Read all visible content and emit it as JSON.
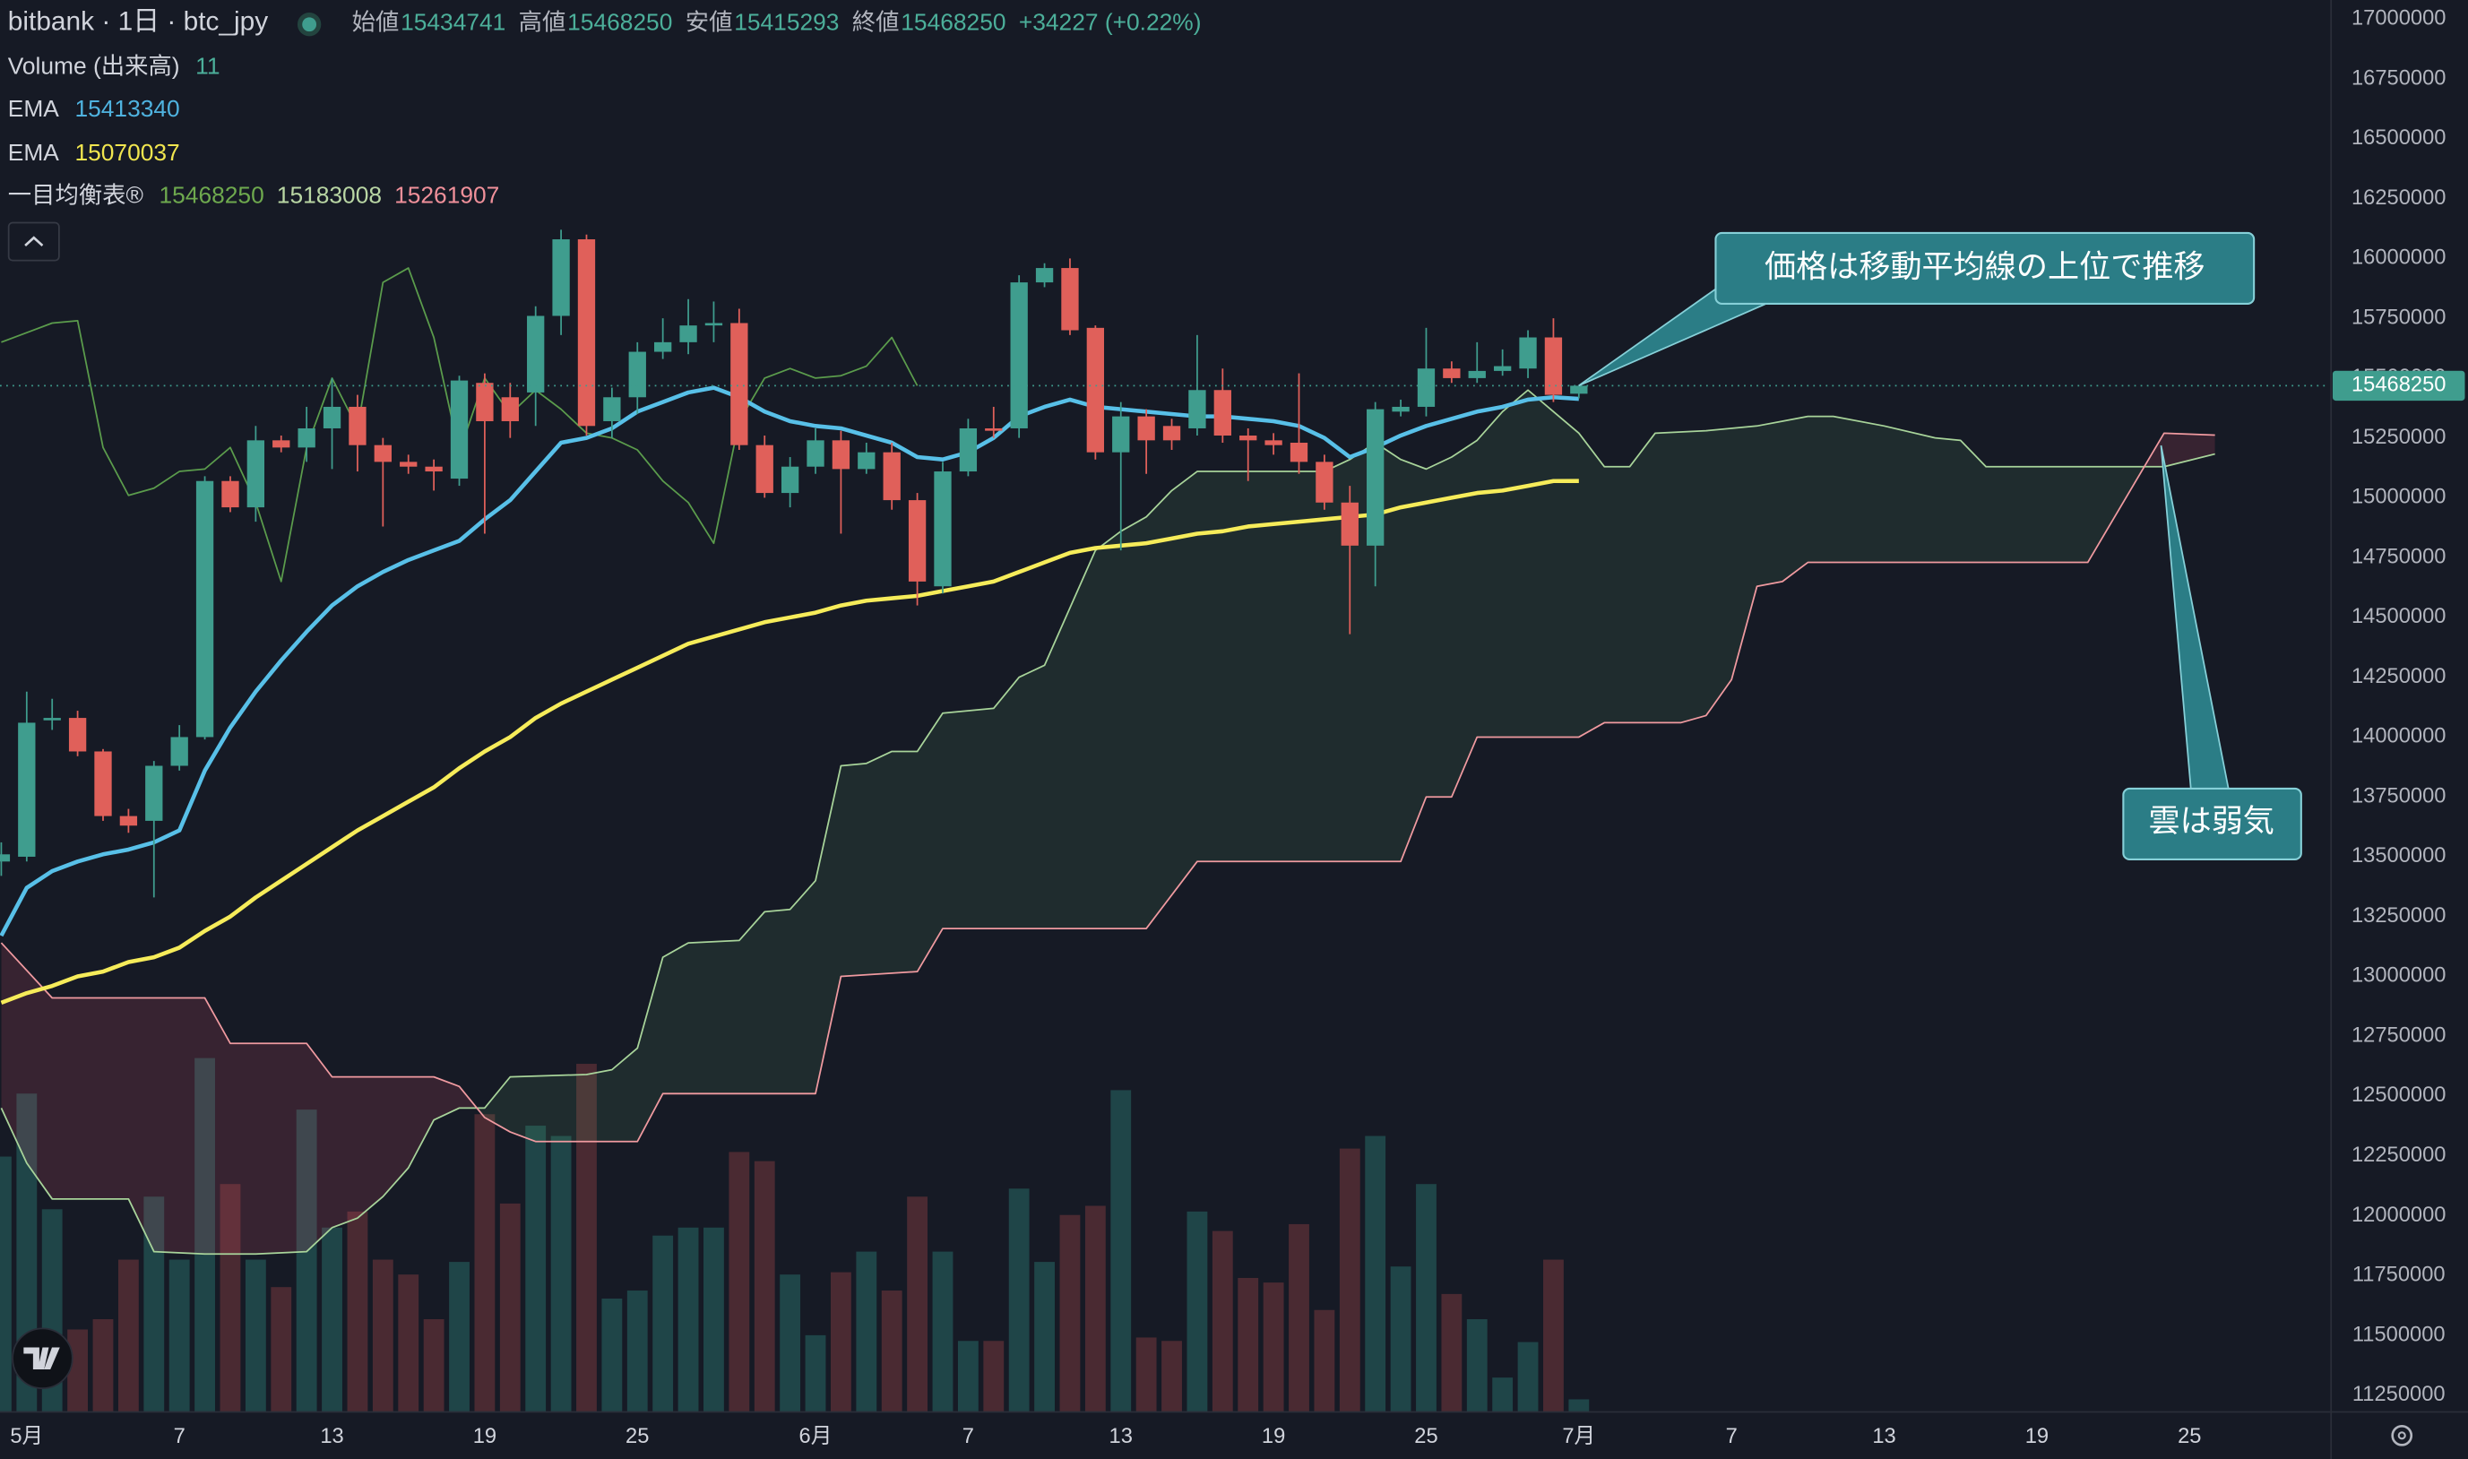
{
  "legend": {
    "symbol": "bitbank · 1日 · btc_jpy",
    "ohlc": [
      {
        "label": "始値",
        "value": 15434741
      },
      {
        "label": "高値",
        "value": 15468250
      },
      {
        "label": "安値",
        "value": 15415293
      },
      {
        "label": "終値",
        "value": 15468250
      }
    ],
    "change": "+34227 (+0.22%)",
    "indicators": [
      {
        "name": "Volume (出来高)",
        "values": [
          11
        ],
        "colors": [
          "#4caf9a"
        ]
      },
      {
        "name": "EMA",
        "values": [
          15413340
        ],
        "colors": [
          "#4fb3e0"
        ]
      },
      {
        "name": "EMA",
        "values": [
          15070037
        ],
        "colors": [
          "#f1e64f"
        ]
      },
      {
        "name": "一目均衡表®",
        "values": [
          15468250,
          15183008,
          15261907
        ],
        "colors": [
          "#6ea94e",
          "#b9d6a4",
          "#f0909a"
        ]
      }
    ]
  },
  "chart_data": {
    "type": "candlestick",
    "xlim": [
      -1.05,
      90.5
    ],
    "xticks": [
      {
        "value": 0,
        "label": "5月"
      },
      {
        "value": 6,
        "label": "7"
      },
      {
        "value": 12,
        "label": "13"
      },
      {
        "value": 18,
        "label": "19"
      },
      {
        "value": 24,
        "label": "25"
      },
      {
        "value": 31,
        "label": "6月"
      },
      {
        "value": 37,
        "label": "7"
      },
      {
        "value": 43,
        "label": "13"
      },
      {
        "value": 49,
        "label": "19"
      },
      {
        "value": 55,
        "label": "25"
      },
      {
        "value": 61,
        "label": "7月"
      },
      {
        "value": 67,
        "label": "7"
      },
      {
        "value": 73,
        "label": "13"
      },
      {
        "value": 79,
        "label": "19"
      },
      {
        "value": 85,
        "label": "25"
      }
    ],
    "ylim": [
      11180000,
      17080000
    ],
    "yticks": [
      11250000,
      11500000,
      11750000,
      12000000,
      12250000,
      12500000,
      12750000,
      13000000,
      13250000,
      13500000,
      13750000,
      14000000,
      14250000,
      14500000,
      14750000,
      15000000,
      15250000,
      15500000,
      15750000,
      16000000,
      16250000,
      16500000,
      16750000,
      17000000
    ],
    "grid": false,
    "vlim": [
      0,
      1233
    ],
    "up_color": "#3f9d8e",
    "down_color": "#e0605a",
    "volume_up_color": "#1f4548",
    "volume_down_color": "#4a2a32",
    "last_price": 15468250,
    "candles": {
      "x": [
        -1,
        0,
        1,
        2,
        3,
        4,
        5,
        6,
        7,
        8,
        9,
        10,
        11,
        12,
        13,
        14,
        15,
        16,
        17,
        18,
        19,
        20,
        21,
        22,
        23,
        24,
        25,
        26,
        27,
        28,
        29,
        30,
        31,
        32,
        33,
        34,
        35,
        36,
        37,
        38,
        39,
        40,
        41,
        42,
        43,
        44,
        45,
        46,
        47,
        48,
        49,
        50,
        51,
        52,
        53,
        54,
        55,
        56,
        57,
        58,
        59,
        60,
        61
      ],
      "open": [
        13480000,
        13500000,
        14070000,
        14080000,
        13940000,
        13670000,
        13650000,
        13880000,
        14000000,
        15070000,
        14960000,
        15240000,
        15210000,
        15290000,
        15380000,
        15220000,
        15150000,
        15130000,
        15080000,
        15480000,
        15420000,
        15440000,
        15760000,
        16080000,
        15320000,
        15420000,
        15610000,
        15650000,
        15720000,
        15730000,
        15220000,
        15020000,
        15130000,
        15240000,
        15120000,
        15190000,
        14990000,
        14630000,
        15110000,
        15290000,
        15290000,
        15900000,
        15960000,
        15710000,
        15190000,
        15340000,
        15300000,
        15290000,
        15450000,
        15260000,
        15240000,
        15230000,
        15150000,
        14980000,
        14800000,
        15360000,
        15380000,
        15540000,
        15500000,
        15530000,
        15540000,
        15670000,
        15434741
      ],
      "high": [
        13560000,
        14190000,
        14160000,
        14110000,
        13950000,
        13700000,
        13900000,
        14050000,
        15090000,
        15090000,
        15300000,
        15260000,
        15380000,
        15500000,
        15430000,
        15250000,
        15180000,
        15160000,
        15510000,
        15520000,
        15480000,
        15800000,
        16120000,
        16100000,
        15460000,
        15650000,
        15750000,
        15830000,
        15820000,
        15790000,
        15260000,
        15170000,
        15290000,
        15280000,
        15230000,
        15230000,
        15020000,
        15150000,
        15330000,
        15380000,
        15930000,
        15980000,
        16000000,
        15720000,
        15400000,
        15370000,
        15330000,
        15680000,
        15540000,
        15290000,
        15270000,
        15520000,
        15180000,
        15050000,
        15400000,
        15410000,
        15710000,
        15570000,
        15650000,
        15620000,
        15700000,
        15750000,
        15468250
      ],
      "low": [
        13420000,
        13480000,
        14030000,
        13920000,
        13650000,
        13600000,
        13330000,
        13860000,
        13990000,
        14940000,
        14900000,
        15190000,
        15150000,
        15120000,
        15110000,
        14880000,
        15100000,
        15030000,
        15050000,
        14850000,
        15250000,
        15300000,
        15680000,
        15260000,
        15250000,
        15350000,
        15580000,
        15600000,
        15650000,
        15200000,
        15000000,
        14960000,
        15100000,
        14850000,
        15100000,
        14950000,
        14550000,
        14600000,
        15090000,
        15250000,
        15250000,
        15880000,
        15680000,
        15160000,
        14780000,
        15100000,
        15200000,
        15260000,
        15230000,
        15070000,
        15180000,
        15100000,
        14950000,
        14430000,
        14630000,
        15340000,
        15340000,
        15480000,
        15480000,
        15510000,
        15500000,
        15400000,
        15415293
      ],
      "close": [
        13510000,
        14060000,
        14080000,
        13940000,
        13670000,
        13630000,
        13880000,
        14000000,
        15070000,
        14960000,
        15240000,
        15210000,
        15290000,
        15380000,
        15220000,
        15150000,
        15130000,
        15110000,
        15490000,
        15320000,
        15320000,
        15760000,
        16080000,
        15300000,
        15420000,
        15610000,
        15650000,
        15720000,
        15730000,
        15220000,
        15020000,
        15130000,
        15240000,
        15120000,
        15190000,
        14990000,
        14650000,
        15110000,
        15290000,
        15280000,
        15900000,
        15960000,
        15700000,
        15190000,
        15340000,
        15240000,
        15240000,
        15450000,
        15260000,
        15240000,
        15220000,
        15150000,
        14980000,
        14800000,
        15370000,
        15380000,
        15540000,
        15500000,
        15530000,
        15550000,
        15670000,
        15430000,
        15468250
      ],
      "volume": [
        223,
        278,
        177,
        72,
        81,
        133,
        188,
        133,
        309,
        199,
        133,
        109,
        264,
        161,
        175,
        133,
        120,
        81,
        131,
        260,
        182,
        250,
        241,
        304,
        99,
        106,
        154,
        161,
        161,
        227,
        219,
        120,
        67,
        122,
        140,
        106,
        188,
        140,
        62,
        62,
        195,
        131,
        172,
        180,
        281,
        65,
        62,
        175,
        158,
        117,
        113,
        164,
        89,
        230,
        241,
        127,
        199,
        103,
        81,
        30,
        61,
        133,
        11
      ]
    },
    "ema": [
      {
        "color": "#58c0e8",
        "values": [
          13170000,
          13370000,
          13440000,
          13480000,
          13510000,
          13530000,
          13560000,
          13610000,
          13860000,
          14040000,
          14190000,
          14320000,
          14440000,
          14550000,
          14630000,
          14690000,
          14740000,
          14780000,
          14820000,
          14910000,
          14990000,
          15110000,
          15230000,
          15250000,
          15290000,
          15360000,
          15400000,
          15440000,
          15460000,
          15420000,
          15360000,
          15320000,
          15300000,
          15290000,
          15260000,
          15230000,
          15170000,
          15160000,
          15190000,
          15250000,
          15340000,
          15380000,
          15410000,
          15380000,
          15370000,
          15360000,
          15350000,
          15340000,
          15340000,
          15330000,
          15320000,
          15300000,
          15250000,
          15170000,
          15210000,
          15260000,
          15300000,
          15330000,
          15360000,
          15380000,
          15410000,
          15420000,
          15413340
        ]
      },
      {
        "color": "#f6ec5a",
        "values": [
          12890000,
          12930000,
          12960000,
          13000000,
          13020000,
          13060000,
          13080000,
          13120000,
          13190000,
          13250000,
          13330000,
          13400000,
          13470000,
          13540000,
          13610000,
          13670000,
          13730000,
          13790000,
          13870000,
          13940000,
          14000000,
          14080000,
          14140000,
          14190000,
          14240000,
          14290000,
          14340000,
          14390000,
          14420000,
          14450000,
          14480000,
          14500000,
          14520000,
          14550000,
          14570000,
          14580000,
          14590000,
          14610000,
          14630000,
          14650000,
          14690000,
          14730000,
          14770000,
          14790000,
          14800000,
          14810000,
          14830000,
          14850000,
          14860000,
          14880000,
          14890000,
          14900000,
          14910000,
          14920000,
          14930000,
          14960000,
          14980000,
          15000000,
          15020000,
          15030000,
          15050000,
          15070000,
          15070037
        ]
      }
    ],
    "ichimoku": {
      "cloud_up_color": "rgba(90,170,110,0.13)",
      "cloud_down_color": "rgba(230,90,110,0.16)",
      "lagging": {
        "color": "#5b9c4c",
        "x": [
          -1,
          0,
          1,
          2,
          3,
          4,
          5,
          6,
          7,
          8,
          9,
          10,
          11,
          12,
          13,
          14,
          15,
          16,
          17,
          18,
          19,
          20,
          21,
          22,
          23,
          24,
          25,
          26,
          27,
          28,
          29,
          30,
          31,
          32,
          33,
          34,
          35
        ],
        "values": [
          15650000,
          15690000,
          15730000,
          15740000,
          15210000,
          15010000,
          15040000,
          15110000,
          15120000,
          15210000,
          14980000,
          14650000,
          15210000,
          15500000,
          15290000,
          15900000,
          15960000,
          15670000,
          15190000,
          15500000,
          15350000,
          15450000,
          15370000,
          15270000,
          15250000,
          15200000,
          15070000,
          14980000,
          14810000,
          15320000,
          15500000,
          15540000,
          15500000,
          15510000,
          15550000,
          15670000,
          15468250
        ]
      },
      "span_a": {
        "color": "#a8d49a",
        "x": [
          -1,
          0,
          1,
          4,
          5,
          7,
          9,
          11,
          12,
          13,
          14,
          15,
          16,
          17,
          18,
          19,
          22,
          23,
          24,
          25,
          26,
          28,
          29,
          30,
          31,
          32,
          33,
          34,
          35,
          36,
          38,
          39,
          40,
          42,
          43,
          44,
          45,
          46,
          51,
          52,
          53,
          54,
          55,
          56,
          57,
          58,
          59,
          60,
          61,
          62,
          63,
          64,
          66,
          68,
          69,
          70,
          71,
          73,
          75,
          76,
          77,
          84,
          86
        ],
        "values": [
          12450000,
          12220000,
          12070000,
          12070000,
          11850000,
          11840000,
          11840000,
          11850000,
          11950000,
          11990000,
          12080000,
          12200000,
          12400000,
          12450000,
          12450000,
          12580000,
          12590000,
          12610000,
          12700000,
          13080000,
          13140000,
          13150000,
          13270000,
          13280000,
          13400000,
          13880000,
          13890000,
          13940000,
          13940000,
          14100000,
          14120000,
          14250000,
          14300000,
          14780000,
          14860000,
          14920000,
          15030000,
          15110000,
          15110000,
          15160000,
          15230000,
          15160000,
          15120000,
          15170000,
          15240000,
          15360000,
          15450000,
          15360000,
          15270000,
          15130000,
          15130000,
          15270000,
          15280000,
          15300000,
          15320000,
          15340000,
          15340000,
          15300000,
          15250000,
          15240000,
          15130000,
          15130000,
          15183008
        ]
      },
      "span_b": {
        "color": "#f09aa0",
        "x": [
          -1,
          1,
          7,
          8,
          11,
          12,
          16,
          17,
          18,
          19,
          20,
          24,
          25,
          31,
          32,
          35,
          36,
          44,
          46,
          54,
          55,
          56,
          57,
          61,
          62,
          65,
          66,
          67,
          68,
          69,
          70,
          81,
          82,
          84,
          86
        ],
        "values": [
          13140000,
          12910000,
          12910000,
          12720000,
          12720000,
          12580000,
          12580000,
          12540000,
          12410000,
          12350000,
          12310000,
          12310000,
          12510000,
          12510000,
          13000000,
          13020000,
          13200000,
          13200000,
          13480000,
          13480000,
          13750000,
          13750000,
          14000000,
          14000000,
          14060000,
          14060000,
          14090000,
          14240000,
          14630000,
          14650000,
          14730000,
          14730000,
          14910000,
          15270000,
          15261907
        ]
      }
    },
    "annotations": [
      {
        "text": "価格は移動平均線の上位で推移"
      },
      {
        "text": "雲は弱気"
      }
    ]
  }
}
